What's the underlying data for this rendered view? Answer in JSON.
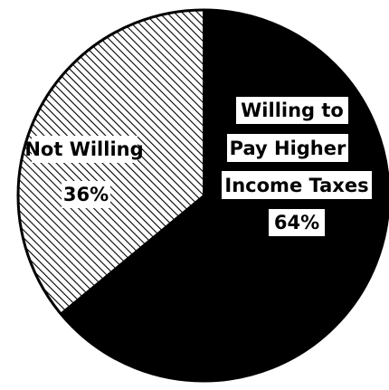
{
  "chart_data": {
    "type": "pie",
    "slices": [
      {
        "label_lines": [
          "Willing to",
          "Pay Higher",
          "Income Taxes"
        ],
        "percent_label": "64%",
        "value": 64,
        "fill": "#000000",
        "pattern": "solid"
      },
      {
        "label_lines": [
          "Not Willing"
        ],
        "percent_label": "36%",
        "value": 36,
        "fill": "#000000",
        "pattern": "diagonal-hatch"
      }
    ],
    "start_angle_deg": 0,
    "direction": "clockwise",
    "legend": "none"
  }
}
